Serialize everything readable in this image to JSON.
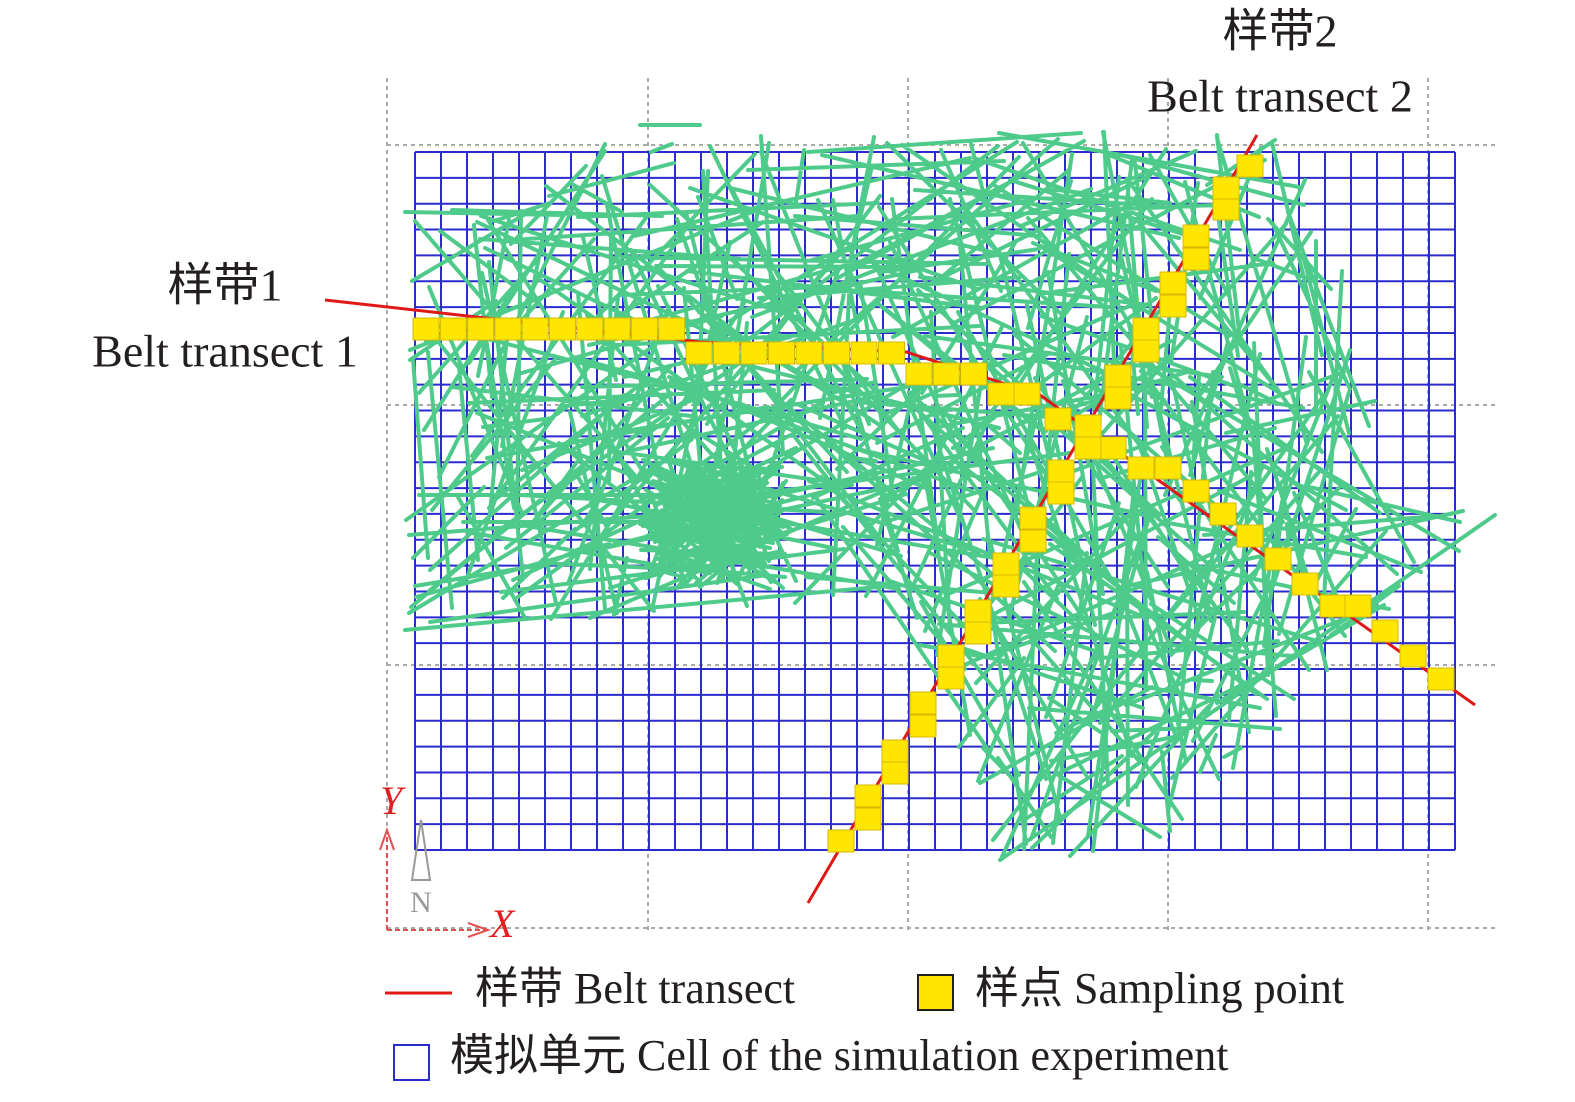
{
  "annotations": {
    "transect_1": {
      "cn": "样带1",
      "en": "Belt transect 1"
    },
    "transect_2": {
      "cn": "样带2",
      "en": "Belt transect 2"
    }
  },
  "axes": {
    "x": "X",
    "y": "Y",
    "north": "N"
  },
  "legend": [
    {
      "label": "样带 Belt transect"
    },
    {
      "label": "样点 Sampling point"
    },
    {
      "label": "模拟单元 Cell of the simulation experiment"
    }
  ]
}
